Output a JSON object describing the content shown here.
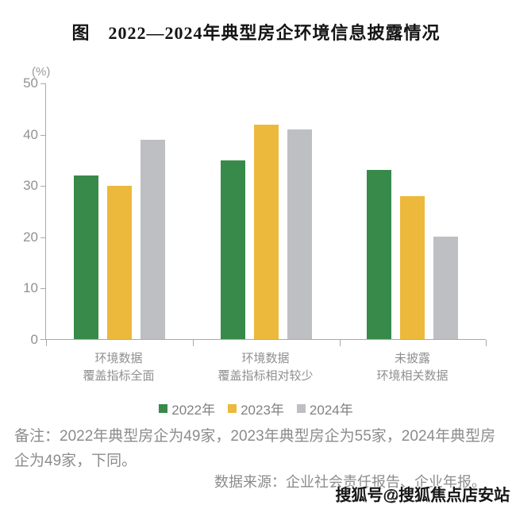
{
  "title": "图　2022—2024年典型房企环境信息披露情况",
  "chart_data": {
    "type": "bar",
    "title": "图　2022—2024年典型房企环境信息披露情况",
    "unit_label": "(%)",
    "categories": [
      "环境数据\n覆盖指标全面",
      "环境数据\n覆盖指标相对较少",
      "未披露\n环境相关数据"
    ],
    "series": [
      {
        "name": "2022年",
        "color": "#388A4A",
        "values": [
          32,
          35,
          33
        ]
      },
      {
        "name": "2023年",
        "color": "#EDB93C",
        "values": [
          30,
          42,
          28
        ]
      },
      {
        "name": "2024年",
        "color": "#BDBFC3",
        "values": [
          39,
          41,
          20
        ]
      }
    ],
    "ylim": [
      0,
      50
    ],
    "yticks": [
      0,
      10,
      20,
      30,
      40,
      50
    ],
    "grid": false,
    "legend_position": "bottom",
    "axis_color": "#a9a9a9",
    "tick_label_color": "#919191"
  },
  "note": "备注：2022年典型房企为49家，2023年典型房企为55家，2024年典型房企为49家，下同。",
  "source": "数据来源：企业社会责任报告、企业年报。",
  "watermark": "搜狐号@搜狐焦点店安站"
}
